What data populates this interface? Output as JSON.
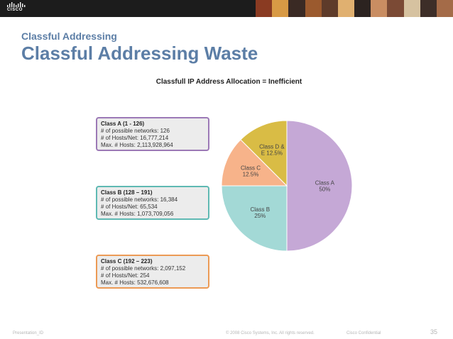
{
  "header": {
    "logo_text": "CISCO",
    "logo_icon": "cisco-bridge-logo",
    "photo_colors": [
      "#8a3b22",
      "#d89a45",
      "#3a2a24",
      "#9b5a2e",
      "#5e3b2a",
      "#e0b070",
      "#2c2320",
      "#c98d62",
      "#7b4a35",
      "#d6c2a0",
      "#3d2e28",
      "#a46b48"
    ]
  },
  "slide": {
    "subtitle": "Classful Addressing",
    "title": "Classful Addressing Waste"
  },
  "info_boxes": [
    {
      "heading": "Class A (1 - 126)",
      "networks": "# of possible networks: 126",
      "hosts_per_net": "# of Hosts/Net: 16,777,214",
      "max_hosts": "Max. # Hosts: 2,113,928,964",
      "border_color": "#9c79b6"
    },
    {
      "heading": "Class B (128 – 191)",
      "networks": "# of possible networks: 16,384",
      "hosts_per_net": "# of Hosts/Net: 65,534",
      "max_hosts": "Max. # Hosts: 1,073,709,056",
      "border_color": "#5fb9b3"
    },
    {
      "heading": "Class C (192 – 223)",
      "networks": "# of possible networks: 2,097,152",
      "hosts_per_net": "# of Hosts/Net: 254",
      "max_hosts": "Max. # Hosts: 532,676,608",
      "border_color": "#ec9a55"
    }
  ],
  "chart_data": {
    "type": "pie",
    "title": "Classfull IP Address Allocation = Inefficient",
    "slices": [
      {
        "name": "Class A",
        "value": 50,
        "label_lines": [
          "Class A",
          "50%"
        ],
        "color": "#c5a8d6"
      },
      {
        "name": "Class B",
        "value": 25,
        "label_lines": [
          "Class B",
          "25%"
        ],
        "color": "#a3d9d6"
      },
      {
        "name": "Class C",
        "value": 12.5,
        "label_lines": [
          "Class C",
          "12.5%"
        ],
        "color": "#f7b38a"
      },
      {
        "name": "Class D & E",
        "value": 12.5,
        "label_lines": [
          "Class D &",
          "E 12.5%"
        ],
        "color": "#d9bc45"
      }
    ],
    "legend": "none"
  },
  "footer": {
    "left": "Presentation_ID",
    "copyright": "© 2008 Cisco Systems, Inc. All rights reserved.",
    "confidential": "Cisco Confidential",
    "page_number": "35"
  }
}
